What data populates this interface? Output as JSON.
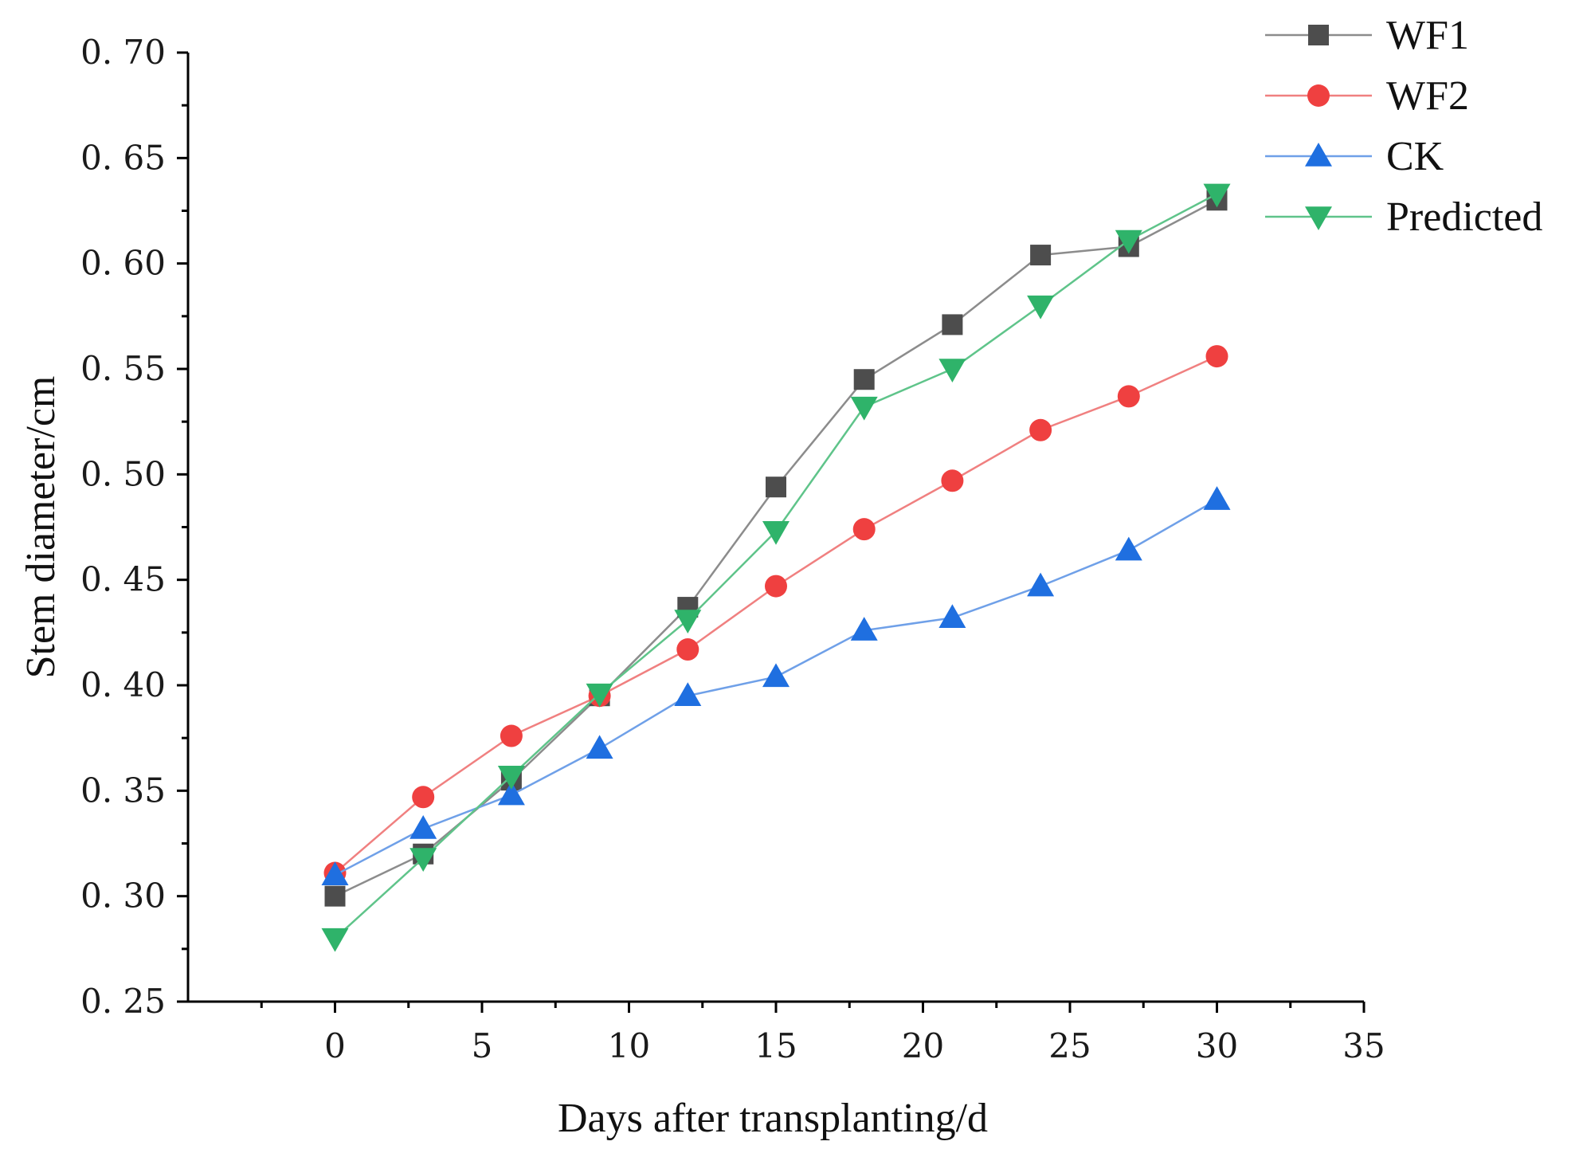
{
  "chart_data": {
    "type": "line",
    "title": "",
    "xlabel": "Days after transplanting/d",
    "ylabel": "Stem diameter/cm",
    "xlim": [
      -5,
      35
    ],
    "ylim": [
      0.25,
      0.7
    ],
    "x_ticks": [
      0,
      5,
      10,
      15,
      20,
      25,
      30,
      35
    ],
    "x_tick_labels": [
      "0",
      "5",
      "10",
      "15",
      "20",
      "25",
      "30",
      "35"
    ],
    "y_ticks": [
      0.25,
      0.3,
      0.35,
      0.4,
      0.45,
      0.5,
      0.55,
      0.6,
      0.65,
      0.7
    ],
    "y_tick_labels": [
      "0. 25",
      "0. 30",
      "0. 35",
      "0. 40",
      "0. 45",
      "0. 50",
      "0. 55",
      "0. 60",
      "0. 65",
      "0. 70"
    ],
    "grid": false,
    "legend_position": "top-right",
    "x": [
      0,
      3,
      6,
      9,
      12,
      15,
      18,
      21,
      24,
      27,
      30
    ],
    "series": [
      {
        "name": "WF1",
        "marker": "square",
        "color": "#4d4d4d",
        "line_color": "#8c8c8c",
        "values": [
          0.3,
          0.32,
          0.355,
          0.395,
          0.437,
          0.494,
          0.545,
          0.571,
          0.604,
          0.608,
          0.63
        ]
      },
      {
        "name": "WF2",
        "marker": "circle",
        "color": "#ef4040",
        "line_color": "#f08080",
        "values": [
          0.311,
          0.347,
          0.376,
          0.395,
          0.417,
          0.447,
          0.474,
          0.497,
          0.521,
          0.537,
          0.556
        ]
      },
      {
        "name": "CK",
        "marker": "triangle-up",
        "color": "#1f6fe0",
        "line_color": "#6fa0e8",
        "values": [
          0.31,
          0.332,
          0.348,
          0.37,
          0.395,
          0.404,
          0.426,
          0.432,
          0.447,
          0.464,
          0.488
        ]
      },
      {
        "name": "Predicted",
        "marker": "triangle-down",
        "color": "#2fb36a",
        "line_color": "#5fc48a",
        "values": [
          0.28,
          0.318,
          0.357,
          0.396,
          0.431,
          0.473,
          0.532,
          0.55,
          0.58,
          0.611,
          0.633
        ]
      }
    ]
  }
}
